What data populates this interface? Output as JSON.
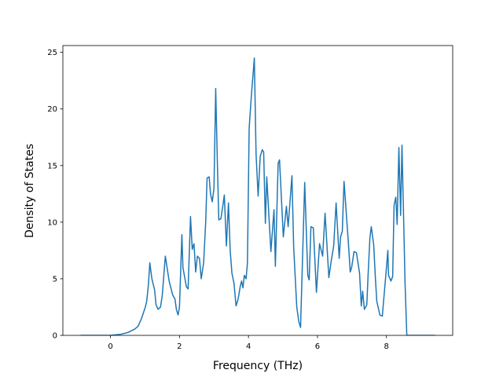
{
  "chart_data": {
    "type": "line",
    "xlabel": "Frequency (THz)",
    "ylabel": "Density of States",
    "color": "#1f77b4",
    "x": [
      -0.87,
      0,
      0.3,
      0.5,
      0.7,
      0.8,
      0.9,
      1.0,
      1.05,
      1.1,
      1.14,
      1.2,
      1.28,
      1.32,
      1.38,
      1.45,
      1.5,
      1.59,
      1.7,
      1.8,
      1.87,
      1.91,
      1.96,
      2.0,
      2.07,
      2.1,
      2.2,
      2.25,
      2.32,
      2.37,
      2.42,
      2.47,
      2.52,
      2.58,
      2.63,
      2.7,
      2.76,
      2.8,
      2.86,
      2.9,
      2.95,
      3.0,
      3.05,
      3.1,
      3.14,
      3.2,
      3.25,
      3.3,
      3.36,
      3.42,
      3.47,
      3.52,
      3.58,
      3.64,
      3.7,
      3.76,
      3.8,
      3.84,
      3.88,
      3.93,
      3.97,
      4.02,
      4.08,
      4.17,
      4.22,
      4.28,
      4.34,
      4.4,
      4.44,
      4.49,
      4.53,
      4.65,
      4.74,
      4.78,
      4.86,
      4.9,
      5.01,
      5.1,
      5.15,
      5.26,
      5.31,
      5.4,
      5.46,
      5.51,
      5.63,
      5.72,
      5.76,
      5.81,
      5.88,
      5.97,
      6.06,
      6.15,
      6.22,
      6.33,
      6.4,
      6.47,
      6.54,
      6.63,
      6.67,
      6.72,
      6.77,
      6.9,
      6.95,
      6.99,
      7.06,
      7.13,
      7.22,
      7.27,
      7.31,
      7.36,
      7.43,
      7.47,
      7.52,
      7.56,
      7.63,
      7.68,
      7.72,
      7.81,
      7.88,
      7.93,
      8.0,
      8.04,
      8.06,
      8.13,
      8.18,
      8.22,
      8.27,
      8.31,
      8.36,
      8.41,
      8.45,
      8.54,
      8.59,
      9.41
    ],
    "values": [
      0,
      0,
      0.1,
      0.25,
      0.55,
      0.8,
      1.5,
      2.4,
      3.0,
      4.5,
      6.4,
      5.0,
      4.0,
      2.7,
      2.3,
      2.5,
      3.5,
      7.0,
      4.8,
      3.6,
      3.2,
      2.3,
      1.8,
      2.5,
      8.9,
      6.0,
      4.3,
      4.1,
      10.5,
      7.6,
      8.1,
      5.6,
      7.0,
      6.8,
      5.0,
      6.4,
      10.0,
      13.9,
      14.0,
      12.5,
      11.8,
      13.0,
      21.8,
      15.0,
      10.2,
      10.3,
      11.3,
      12.4,
      7.9,
      11.7,
      7.5,
      5.5,
      4.6,
      2.6,
      3.2,
      4.3,
      4.8,
      4.2,
      5.3,
      5.0,
      6.4,
      18.3,
      21.0,
      24.5,
      16.0,
      12.3,
      15.8,
      16.4,
      16.2,
      9.9,
      14.0,
      7.4,
      11.1,
      6.1,
      15.2,
      15.5,
      8.7,
      11.4,
      9.6,
      14.1,
      7.8,
      2.5,
      1.2,
      0.7,
      13.5,
      5.3,
      4.9,
      9.6,
      9.5,
      3.8,
      8.1,
      7.0,
      10.8,
      5.1,
      6.6,
      7.9,
      11.7,
      6.8,
      8.7,
      9.2,
      13.6,
      8.0,
      5.6,
      6.0,
      7.4,
      7.3,
      5.5,
      2.6,
      3.9,
      2.3,
      2.7,
      5.5,
      8.6,
      9.6,
      8.0,
      5.0,
      3.0,
      1.8,
      1.7,
      3.5,
      6.0,
      7.5,
      5.3,
      4.8,
      5.2,
      11.5,
      12.2,
      9.8,
      16.6,
      10.6,
      16.8,
      4.5,
      0,
      0
    ],
    "xlim": [
      -1.38,
      9.92
    ],
    "ylim": [
      0,
      25.6
    ],
    "xticks": [
      0,
      2,
      4,
      6,
      8
    ],
    "yticks": [
      0,
      5,
      10,
      15,
      20,
      25
    ]
  }
}
